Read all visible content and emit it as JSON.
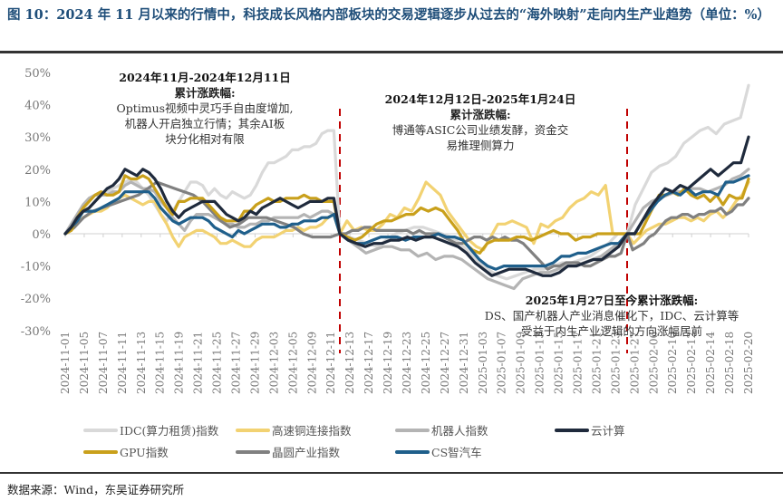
{
  "title": "图 10：2024 年 11 月以来的行情中，科技成长风格内部板块的交易逻辑逐步从过去的“海外映射”走向内生产业趋势（单位：%）",
  "source": "数据来源：Wind，东吴证券研究所",
  "annotations": [
    {
      "heading": "2024年11月-2024年12月11日",
      "sub": "累计涨跌幅:",
      "body": [
        "Optimus视频中灵巧手自由度增加,",
        "机器人开启独立行情；其余AI板",
        "块分化相对有限"
      ]
    },
    {
      "heading": "2024年12月12日-2025年1月24日",
      "sub": "累计涨跌幅:",
      "body": [
        "博通等ASIC公司业绩发酵，资金交",
        "易推理侧算力"
      ]
    },
    {
      "heading": "2025年1月27日至今累计涨跌幅:",
      "sub": "",
      "body": [
        "DS、国产机器人产业消息催化下，IDC、云计算等",
        "受益于内生产业逻辑的方向涨幅居前"
      ]
    }
  ],
  "chart_data": {
    "type": "line",
    "title": "",
    "xlabel": "",
    "ylabel": "",
    "ylim": [
      -30,
      50
    ],
    "yticks": [
      -30,
      -20,
      -10,
      0,
      10,
      20,
      30,
      40,
      50
    ],
    "ytick_labels": [
      "-30%",
      "-20%",
      "-10%",
      "0%",
      "10%",
      "20%",
      "30%",
      "40%",
      "50%"
    ],
    "grid": false,
    "legend_position": "bottom",
    "x_tick_labels": [
      "2024-11-01",
      "2024-11-05",
      "2024-11-07",
      "2024-11-11",
      "2024-11-13",
      "2024-11-15",
      "2024-11-19",
      "2024-11-21",
      "2024-11-25",
      "2024-11-27",
      "2024-11-29",
      "2024-12-03",
      "2024-12-05",
      "2024-12-09",
      "2024-12-11",
      "2024-12-13",
      "2024-12-17",
      "2024-12-19",
      "2024-12-23",
      "2024-12-25",
      "2024-12-27",
      "2024-12-31",
      "2025-01-03",
      "2025-01-07",
      "2025-01-09",
      "2025-01-13",
      "2025-01-15",
      "2025-01-17",
      "2025-01-21",
      "2025-01-23",
      "2025-01-27",
      "2025-02-06",
      "2025-02-10",
      "2025-02-12",
      "2025-02-14",
      "2025-02-18",
      "2025-02-20"
    ],
    "period_dividers": [
      "2024-12-12",
      "2025-01-27"
    ],
    "divider_color": "#c00000",
    "series": [
      {
        "name": "IDC(算力租赁)指数",
        "color": "#d9d9d9",
        "values": [
          0,
          3,
          6,
          9,
          11,
          12,
          12,
          13,
          14,
          15,
          16,
          17,
          16,
          14,
          12,
          9,
          6,
          4,
          7,
          10,
          13,
          16,
          16,
          15,
          12,
          14,
          12,
          11,
          13,
          12,
          11,
          12,
          15,
          19,
          22,
          22,
          23,
          24,
          26,
          26,
          27,
          27,
          28,
          31,
          32,
          32,
          0,
          0,
          -1,
          -2,
          -3,
          -4,
          -2,
          0,
          1,
          2,
          2,
          1,
          0,
          -1,
          -3,
          -6,
          -9,
          -11,
          -13,
          -14,
          -13,
          -12,
          -11,
          -11,
          -10,
          -9,
          -9,
          -8,
          -7,
          -5,
          -3,
          0,
          4,
          9,
          14,
          19,
          21,
          22,
          24,
          28,
          30,
          32,
          33,
          31,
          34,
          35,
          36,
          46
        ]
      },
      {
        "name": "高速铜连接指数",
        "color": "#f2d272",
        "values": [
          0,
          1,
          3,
          5,
          6,
          7,
          7,
          8,
          10,
          11,
          12,
          11,
          10,
          9,
          10,
          10,
          6,
          3,
          -1,
          -4,
          -1,
          0,
          1,
          1,
          0,
          -1,
          -3,
          -3,
          -2,
          -3,
          -4,
          -4,
          -2,
          -1,
          -1,
          -1,
          0,
          1,
          1,
          2,
          1,
          2,
          2,
          3,
          5,
          6,
          0,
          0,
          4,
          1,
          2,
          1,
          1,
          3,
          6,
          5,
          8,
          7,
          11,
          16,
          14,
          12,
          7,
          4,
          1,
          -2,
          -4,
          -5,
          -1,
          3,
          3,
          4,
          3,
          2,
          -3,
          3,
          2,
          4,
          5,
          8,
          10,
          11,
          13,
          12,
          15,
          0,
          0,
          -2,
          -3,
          -1,
          1,
          2,
          3,
          3,
          4,
          5,
          5,
          4,
          5,
          4,
          6,
          7,
          5,
          7,
          10,
          12,
          16
        ]
      },
      {
        "name": "机器人指数",
        "color": "#b4b4b4",
        "values": [
          0,
          3,
          6,
          9,
          11,
          12,
          12,
          12,
          13,
          13,
          15,
          16,
          15,
          14,
          14,
          13,
          10,
          8,
          5,
          3,
          1,
          4,
          6,
          6,
          6,
          5,
          4,
          3,
          3,
          2,
          2,
          3,
          3,
          4,
          4,
          5,
          5,
          5,
          5,
          5,
          6,
          5,
          6,
          7,
          7,
          6,
          0,
          0,
          -2,
          -4,
          -6,
          -5,
          -4,
          -4,
          -5,
          -5,
          -7,
          -6,
          -8,
          -7,
          -7,
          -8,
          -10,
          -12,
          -14,
          -15,
          -16,
          -17,
          -14,
          -13,
          -12,
          -12,
          -11,
          -10,
          -10,
          -9,
          -8,
          -7,
          -5,
          -3,
          0,
          4,
          8,
          10,
          11,
          12,
          13,
          13,
          14,
          14,
          13,
          14,
          15,
          17,
          18,
          20
        ]
      },
      {
        "name": "云计算",
        "color": "#1f2a3c",
        "values": [
          0,
          2,
          5,
          7,
          8,
          10,
          12,
          14,
          15,
          17,
          20,
          19,
          18,
          20,
          19,
          17,
          14,
          10,
          7,
          5,
          7,
          8,
          9,
          10,
          10,
          10,
          8,
          6,
          5,
          4,
          5,
          7,
          6,
          8,
          9,
          10,
          11,
          10,
          9,
          8,
          9,
          10,
          10,
          10,
          11,
          11,
          0,
          0,
          -2,
          -3,
          -4,
          -3,
          -3,
          -2,
          -2,
          -1,
          -2,
          -1,
          -1,
          -2,
          -3,
          -4,
          -6,
          -9,
          -11,
          -13,
          -12,
          -11,
          -11,
          -11,
          -12,
          -13,
          -13,
          -12,
          -10,
          -10,
          -9,
          -8,
          -8,
          -6,
          -4,
          -1,
          0,
          4,
          8,
          11,
          14,
          13,
          15,
          14,
          16,
          18,
          20,
          18,
          20,
          22,
          22,
          30
        ]
      },
      {
        "name": "GPU指数",
        "color": "#c9a01b",
        "values": [
          0,
          1,
          5,
          8,
          10,
          12,
          13,
          12,
          12,
          13,
          18,
          17,
          17,
          18,
          17,
          14,
          11,
          8,
          6,
          10,
          10,
          11,
          11,
          11,
          9,
          7,
          5,
          4,
          4,
          4,
          7,
          7,
          9,
          10,
          11,
          10,
          10,
          11,
          11,
          11,
          12,
          11,
          11,
          10,
          10,
          10,
          0,
          0,
          -1,
          -2,
          -1,
          1,
          3,
          4,
          4,
          5,
          6,
          6,
          8,
          7,
          8,
          7,
          4,
          1,
          -3,
          -5,
          -6,
          -3,
          -2,
          -2,
          -2,
          -1,
          -1,
          -2,
          -1,
          0,
          1,
          0,
          0,
          -2,
          -1,
          -1,
          0,
          0,
          0,
          0,
          -1,
          0,
          0,
          4,
          8,
          12,
          12,
          13,
          12,
          14,
          12,
          11,
          12,
          10,
          12,
          9,
          12,
          11,
          11,
          17
        ]
      },
      {
        "name": "晶圆产业指数",
        "color": "#808080",
        "values": [
          0,
          2,
          5,
          7,
          8,
          9,
          10,
          11,
          12,
          14,
          16,
          15,
          14,
          13,
          12,
          10,
          7,
          4,
          2,
          3,
          5,
          5,
          5,
          4,
          3,
          2,
          0,
          -1,
          -1,
          -1,
          0,
          0,
          0,
          1,
          1,
          2,
          2,
          1,
          1,
          1,
          1,
          1,
          1,
          0,
          1,
          0,
          0,
          0,
          -1,
          -2,
          -3,
          -3,
          -2,
          -1,
          -1,
          -2,
          -1,
          -2,
          -1,
          -2,
          -2,
          -3,
          -5,
          -7,
          -9,
          -11,
          -10,
          -10,
          -9,
          -9,
          -9,
          -10,
          -10,
          -9,
          -8,
          -7,
          -7,
          -6,
          -6,
          -5,
          -4,
          -3,
          -1,
          0,
          2,
          4,
          5,
          5,
          6,
          6,
          5,
          6,
          6,
          7,
          7,
          8,
          6,
          7,
          9,
          9,
          11
        ]
      },
      {
        "name": "CS智汽车",
        "color": "#1f5f8b",
        "values": [
          0,
          2,
          4,
          7,
          7,
          7,
          8,
          9,
          10,
          11,
          13,
          13,
          13,
          13,
          13,
          11,
          8,
          6,
          4,
          3,
          4,
          5,
          5,
          5,
          4,
          2,
          1,
          0,
          -1,
          1,
          0,
          1,
          2,
          3,
          3,
          3,
          2,
          2,
          3,
          3,
          4,
          4,
          4,
          5,
          5,
          6,
          0,
          0,
          -2,
          -3,
          -3,
          -2,
          -1,
          -1,
          -1,
          -2,
          -1,
          -1,
          -1,
          0,
          -1,
          -1,
          -2,
          -5,
          -8,
          -10,
          -11,
          -10,
          -10,
          -10,
          -10,
          -10,
          -10,
          -9,
          -7,
          -7,
          -6,
          -6,
          -5,
          -4,
          -3,
          -3,
          -2,
          0,
          4,
          7,
          10,
          12,
          13,
          12,
          14,
          12,
          13,
          13,
          12,
          16,
          16,
          17,
          18
        ]
      }
    ]
  },
  "legend": [
    {
      "label": "IDC(算力租赁)指数",
      "color": "#d9d9d9"
    },
    {
      "label": "高速铜连接指数",
      "color": "#f2d272"
    },
    {
      "label": "机器人指数",
      "color": "#b4b4b4"
    },
    {
      "label": "云计算",
      "color": "#1f2a3c"
    },
    {
      "label": "GPU指数",
      "color": "#c9a01b"
    },
    {
      "label": "晶圆产业指数",
      "color": "#808080"
    },
    {
      "label": "CS智汽车",
      "color": "#1f5f8b"
    }
  ]
}
